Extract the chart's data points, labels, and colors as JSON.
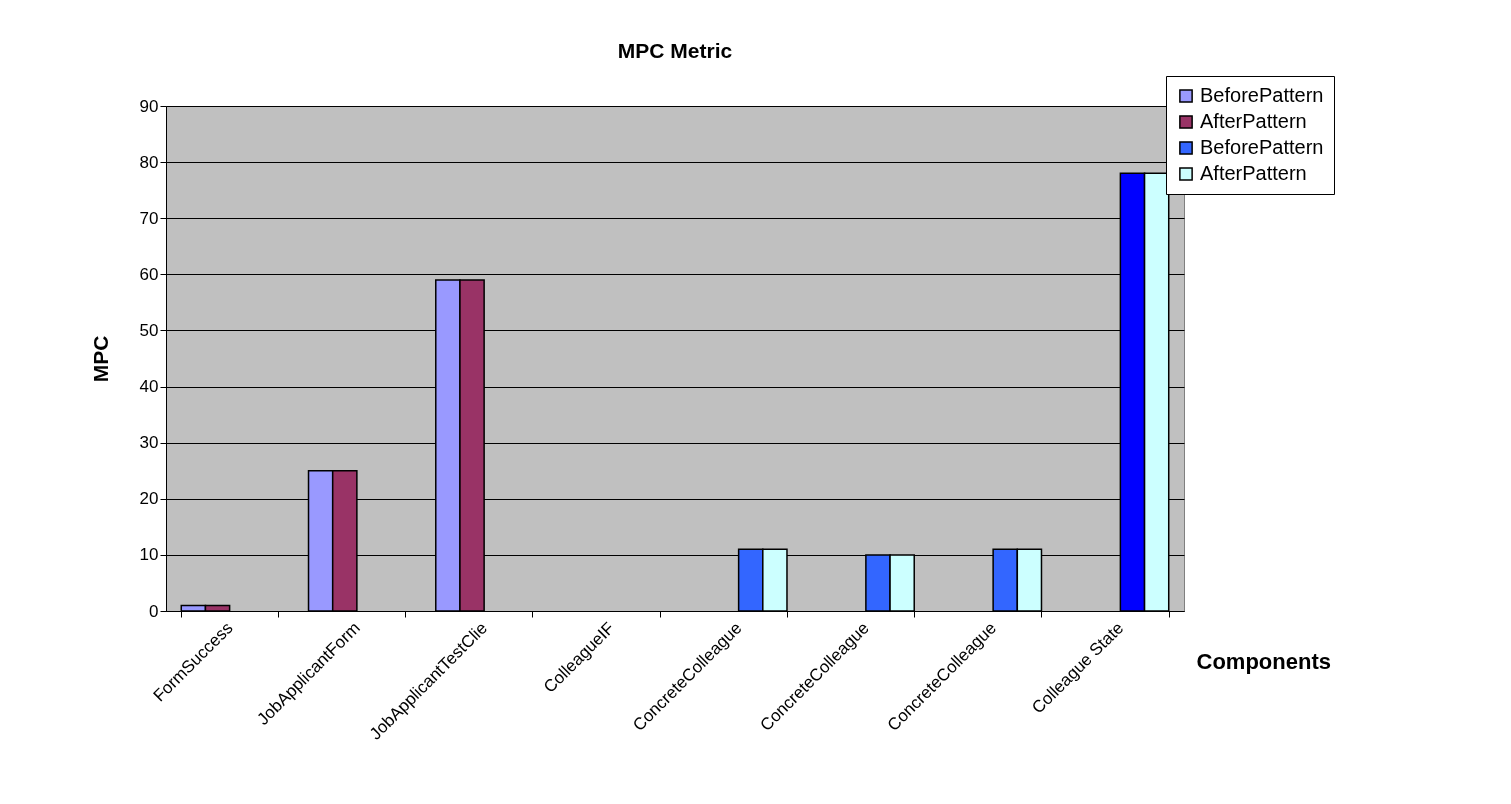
{
  "chart_data": {
    "type": "bar",
    "title": "MPC Metric",
    "xlabel": "Components",
    "ylabel": "MPC",
    "categories": [
      "FormSuccess",
      "JobApplicantForm",
      "JobApplicantTestClie",
      "ColleagueIF",
      "ConcreteColleague",
      "ConcreteColleague",
      "ConcreteColleague",
      "Colleague State"
    ],
    "series": [
      {
        "name": "BeforePattern",
        "color": "#9999ff",
        "values": [
          1,
          25,
          59,
          null,
          null,
          null,
          null,
          null
        ]
      },
      {
        "name": "AfterPattern",
        "color": "#993366",
        "values": [
          1,
          25,
          59,
          null,
          null,
          null,
          null,
          null
        ]
      },
      {
        "name": "BeforePattern",
        "color": "#3366ff",
        "colors": [
          null,
          null,
          null,
          null,
          "#3366ff",
          "#3366ff",
          "#3366ff",
          "#0000ff"
        ],
        "values": [
          null,
          null,
          null,
          null,
          11,
          10,
          11,
          78
        ]
      },
      {
        "name": "AfterPattern",
        "color": "#ccffff",
        "values": [
          null,
          null,
          null,
          null,
          11,
          10,
          11,
          78
        ]
      }
    ],
    "ylim": [
      0,
      90
    ],
    "yticks": [
      0,
      10,
      20,
      30,
      40,
      50,
      60,
      70,
      80,
      90
    ],
    "grid": "y",
    "legend": "top right"
  }
}
